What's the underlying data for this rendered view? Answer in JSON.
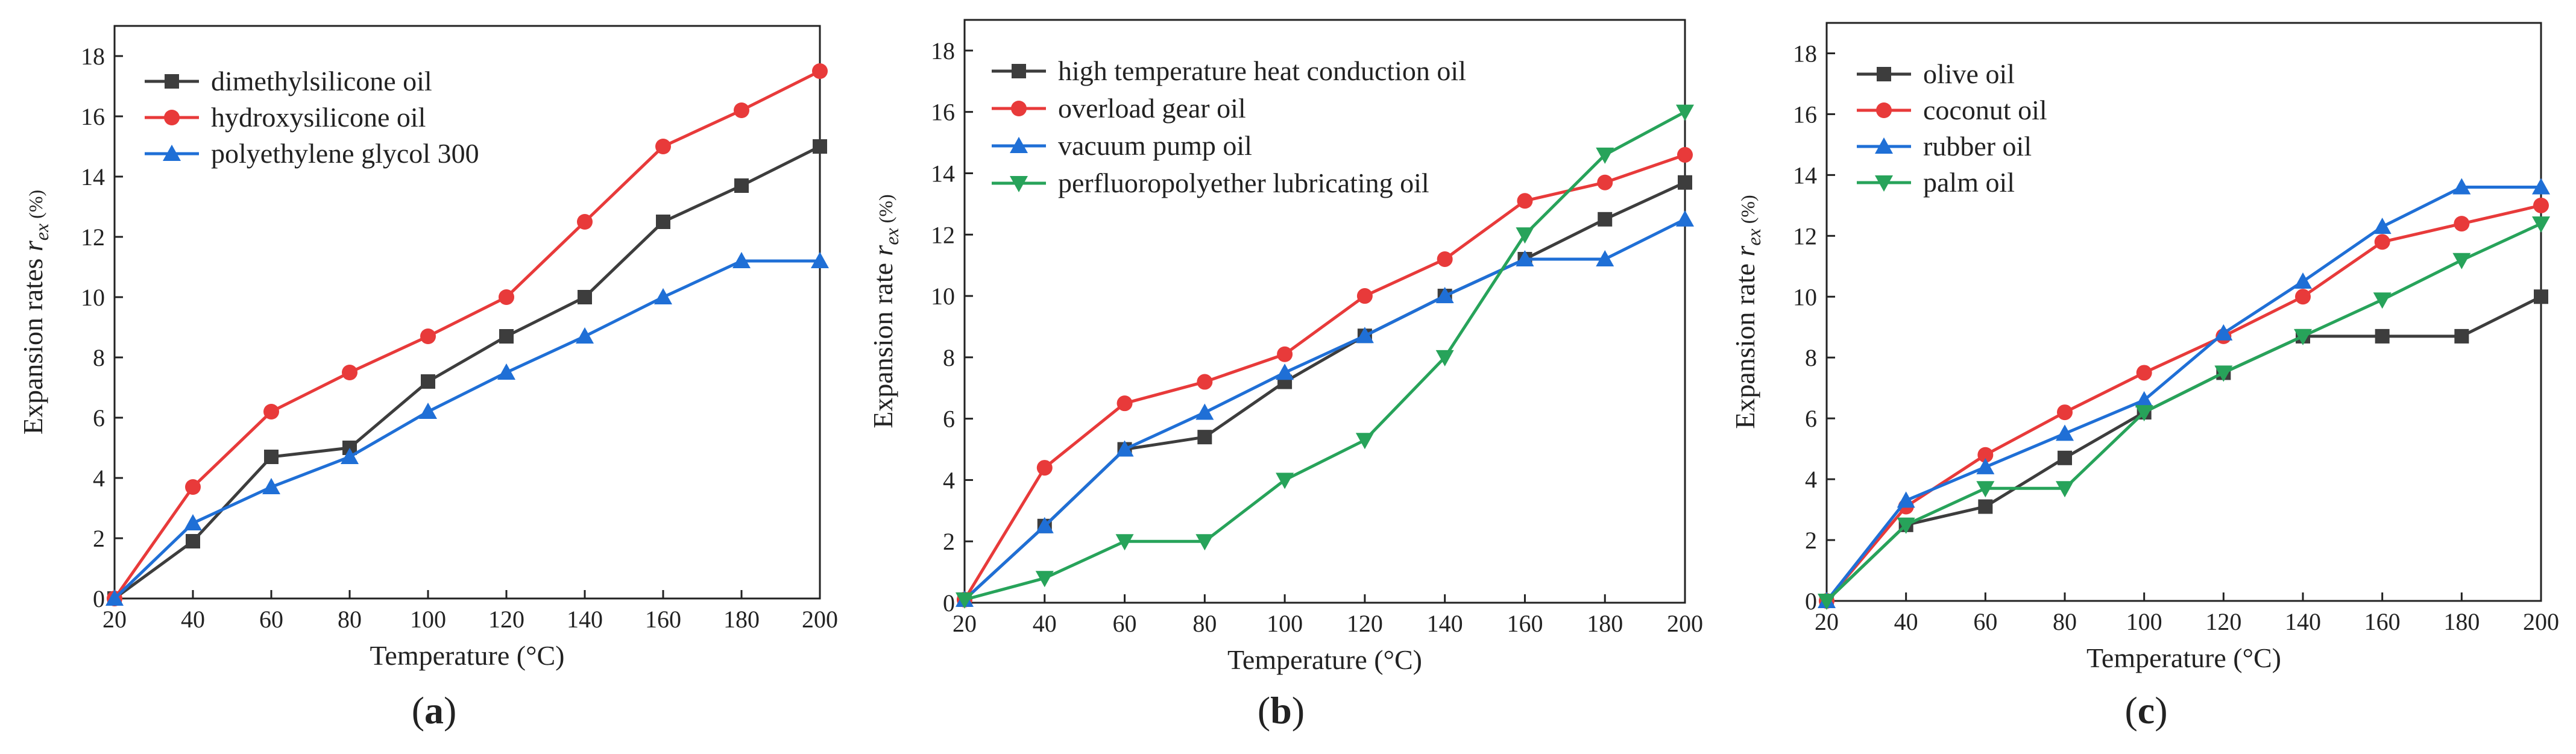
{
  "colors": {
    "black": "#3d3d3d",
    "red": "#e83a3a",
    "blue": "#1f6fd6",
    "green": "#27a35a"
  },
  "chart_data": [
    {
      "type": "line",
      "id": "a",
      "panel_label": "a",
      "title": "",
      "xlabel": "Temperature (°C)",
      "ylabel": "Expansion rates",
      "ylabel_symbol": "r",
      "ylabel_sub": "ex",
      "ylabel_unit": "(%)",
      "xlim": [
        20,
        200
      ],
      "ylim": [
        0,
        19
      ],
      "xticks": [
        20,
        40,
        60,
        80,
        100,
        120,
        140,
        160,
        180,
        200
      ],
      "yticks": [
        0,
        2,
        4,
        6,
        8,
        10,
        12,
        14,
        16,
        18
      ],
      "legend_position": "top-left",
      "x": [
        20,
        40,
        60,
        80,
        100,
        120,
        140,
        160,
        180,
        200
      ],
      "series": [
        {
          "name": "dimethylsilicone oil",
          "color": "#3d3d3d",
          "marker": "square",
          "values": [
            0,
            1.9,
            4.7,
            5.0,
            7.2,
            8.7,
            10.0,
            12.5,
            13.7,
            15.0
          ]
        },
        {
          "name": "hydroxysilicone oil",
          "color": "#e83a3a",
          "marker": "circle",
          "values": [
            0,
            3.7,
            6.2,
            7.5,
            8.7,
            10.0,
            12.5,
            15.0,
            16.2,
            17.5
          ]
        },
        {
          "name": "polyethylene glycol 300",
          "color": "#1f6fd6",
          "marker": "triangle-up",
          "values": [
            0,
            2.5,
            3.7,
            4.7,
            6.2,
            7.5,
            8.7,
            10.0,
            11.2,
            11.2
          ]
        }
      ]
    },
    {
      "type": "line",
      "id": "b",
      "panel_label": "b",
      "title": "",
      "xlabel": "Temperature (°C)",
      "ylabel": "Expansion rate",
      "ylabel_symbol": "r",
      "ylabel_sub": "ex",
      "ylabel_unit": "(%)",
      "xlim": [
        20,
        200
      ],
      "ylim": [
        0,
        19
      ],
      "xticks": [
        20,
        40,
        60,
        80,
        100,
        120,
        140,
        160,
        180,
        200
      ],
      "yticks": [
        0,
        2,
        4,
        6,
        8,
        10,
        12,
        14,
        16,
        18
      ],
      "legend_position": "top-left",
      "x": [
        20,
        40,
        60,
        80,
        100,
        120,
        140,
        160,
        180,
        200
      ],
      "series": [
        {
          "name": "high temperature heat conduction oil",
          "color": "#3d3d3d",
          "marker": "square",
          "values": [
            0.1,
            2.5,
            5.0,
            5.4,
            7.2,
            8.7,
            10.0,
            11.2,
            12.5,
            13.7
          ]
        },
        {
          "name": "overload gear oil",
          "color": "#e83a3a",
          "marker": "circle",
          "values": [
            0.1,
            4.4,
            6.5,
            7.2,
            8.1,
            10.0,
            11.2,
            13.1,
            13.7,
            14.6
          ]
        },
        {
          "name": "vacuum pump oil",
          "color": "#1f6fd6",
          "marker": "triangle-up",
          "values": [
            0.1,
            2.5,
            5.0,
            6.2,
            7.5,
            8.7,
            10.0,
            11.2,
            11.2,
            12.5
          ]
        },
        {
          "name": "perfluoropolyether lubricating oil",
          "color": "#27a35a",
          "marker": "triangle-down",
          "values": [
            0.1,
            0.8,
            2.0,
            2.0,
            4.0,
            5.3,
            8.0,
            12.0,
            14.6,
            16.0
          ]
        }
      ]
    },
    {
      "type": "line",
      "id": "c",
      "panel_label": "c",
      "title": "",
      "xlabel": "Temperature (°C)",
      "ylabel": "Expansion rate",
      "ylabel_symbol": "r",
      "ylabel_sub": "ex",
      "ylabel_unit": "(%)",
      "xlim": [
        20,
        200
      ],
      "ylim": [
        0,
        19
      ],
      "xticks": [
        20,
        40,
        60,
        80,
        100,
        120,
        140,
        160,
        180,
        200
      ],
      "yticks": [
        0,
        2,
        4,
        6,
        8,
        10,
        12,
        14,
        16,
        18
      ],
      "legend_position": "top-left",
      "x": [
        20,
        40,
        60,
        80,
        100,
        120,
        140,
        160,
        180,
        200
      ],
      "series": [
        {
          "name": "olive oil",
          "color": "#3d3d3d",
          "marker": "square",
          "values": [
            0,
            2.5,
            3.1,
            4.7,
            6.2,
            7.5,
            8.7,
            8.7,
            8.7,
            10.0
          ]
        },
        {
          "name": "coconut oil",
          "color": "#e83a3a",
          "marker": "circle",
          "values": [
            0,
            3.1,
            4.8,
            6.2,
            7.5,
            8.7,
            10.0,
            11.8,
            12.4,
            13.0
          ]
        },
        {
          "name": "rubber oil",
          "color": "#1f6fd6",
          "marker": "triangle-up",
          "values": [
            0,
            3.3,
            4.4,
            5.5,
            6.6,
            8.8,
            10.5,
            12.3,
            13.6,
            13.6
          ]
        },
        {
          "name": "palm oil",
          "color": "#27a35a",
          "marker": "triangle-down",
          "values": [
            0,
            2.5,
            3.7,
            3.7,
            6.2,
            7.5,
            8.7,
            9.9,
            11.2,
            12.4
          ]
        }
      ]
    }
  ]
}
